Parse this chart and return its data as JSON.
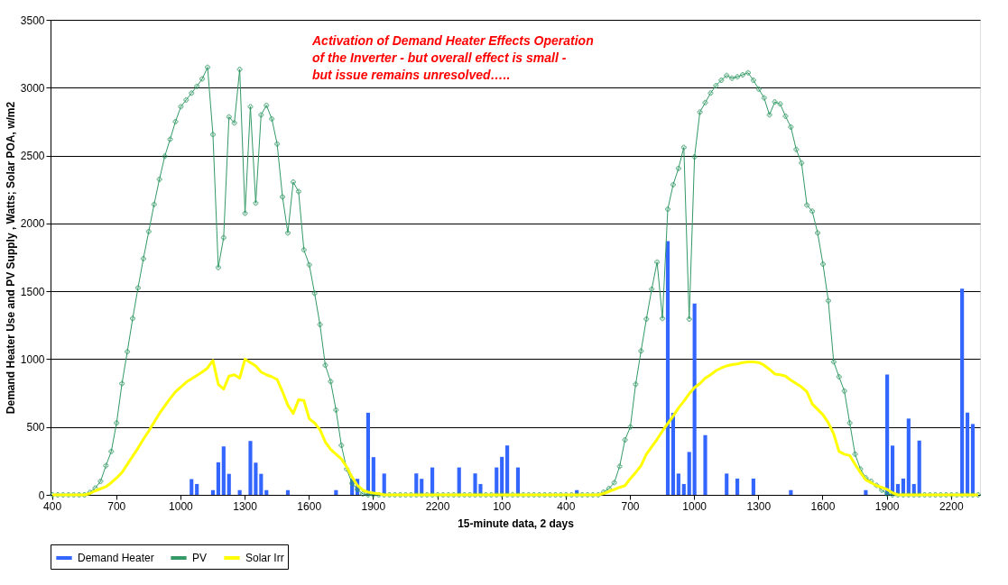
{
  "chart_data": {
    "type": "line",
    "xlabel": "15-minute data, 2 days",
    "ylabel": "Demand Heater Use and PV Supply , Watts; Solar POA, w/m2",
    "annotations": [
      "Activation of Demand Heater Effects Operation of the Inverter - but overall effect is small - but issue remains unresolved….."
    ],
    "categories": [
      "400",
      null,
      null,
      null,
      null,
      null,
      null,
      null,
      null,
      null,
      null,
      null,
      "700",
      null,
      null,
      null,
      null,
      null,
      null,
      null,
      null,
      null,
      null,
      null,
      "1000",
      null,
      null,
      null,
      null,
      null,
      null,
      null,
      null,
      null,
      null,
      null,
      "1300",
      null,
      null,
      null,
      null,
      null,
      null,
      null,
      null,
      null,
      null,
      null,
      "1600",
      null,
      null,
      null,
      null,
      null,
      null,
      null,
      null,
      null,
      null,
      null,
      "1900",
      null,
      null,
      null,
      null,
      null,
      null,
      null,
      null,
      null,
      null,
      null,
      "2200",
      null,
      null,
      null,
      null,
      null,
      null,
      null,
      null,
      null,
      null,
      null,
      "100",
      null,
      null,
      null,
      null,
      null,
      null,
      null,
      null,
      null,
      null,
      null,
      "400",
      null,
      null,
      null,
      null,
      null,
      null,
      null,
      null,
      null,
      null,
      null,
      "700",
      null,
      null,
      null,
      null,
      null,
      null,
      null,
      null,
      null,
      null,
      null,
      "1000",
      null,
      null,
      null,
      null,
      null,
      null,
      null,
      null,
      null,
      null,
      null,
      "1300",
      null,
      null,
      null,
      null,
      null,
      null,
      null,
      null,
      null,
      null,
      null,
      "1600",
      null,
      null,
      null,
      null,
      null,
      null,
      null,
      null,
      null,
      null,
      null,
      "1900",
      null,
      null,
      null,
      null,
      null,
      null,
      null,
      null,
      null,
      null,
      null,
      "2200",
      null,
      null,
      null,
      null,
      null
    ],
    "ylim": [
      0,
      3500
    ],
    "yticks": [
      0,
      500,
      1000,
      1500,
      2000,
      2500,
      3000,
      3500
    ],
    "grid": "y",
    "legend": "bottom",
    "series": [
      {
        "name": "Demand Heater",
        "type": "bar",
        "color": "#3366ff",
        "values": [
          null,
          null,
          null,
          null,
          null,
          null,
          null,
          null,
          null,
          null,
          null,
          null,
          null,
          null,
          null,
          null,
          null,
          null,
          null,
          null,
          null,
          null,
          null,
          null,
          null,
          null,
          116,
          80,
          null,
          null,
          35,
          240,
          357,
          155,
          null,
          35,
          null,
          397,
          237,
          155,
          35,
          null,
          null,
          null,
          35,
          null,
          null,
          null,
          null,
          null,
          null,
          null,
          null,
          35,
          null,
          null,
          120,
          118,
          null,
          605,
          278,
          null,
          157,
          null,
          null,
          null,
          null,
          null,
          158,
          118,
          null,
          202,
          null,
          null,
          null,
          null,
          202,
          null,
          null,
          158,
          80,
          null,
          null,
          202,
          280,
          364,
          null,
          202,
          null,
          null,
          null,
          null,
          null,
          null,
          null,
          null,
          null,
          null,
          35,
          null,
          null,
          null,
          null,
          null,
          null,
          null,
          null,
          null,
          null,
          null,
          null,
          null,
          null,
          null,
          null,
          1870,
          604,
          157,
          80,
          316,
          1410,
          null,
          440,
          null,
          null,
          null,
          157,
          null,
          120,
          null,
          null,
          120,
          null,
          null,
          null,
          null,
          null,
          null,
          35,
          null,
          null,
          null,
          null,
          null,
          null,
          null,
          null,
          null,
          null,
          null,
          null,
          null,
          35,
          null,
          null,
          null,
          887,
          363,
          80,
          120,
          562,
          80,
          400,
          null,
          null,
          null,
          null,
          null,
          null,
          null,
          1520,
          606,
          522,
          null
        ]
      },
      {
        "name": "PV",
        "color": "#339966",
        "marker": "cross",
        "values": [
          0,
          0,
          0,
          0,
          0,
          0,
          0,
          18,
          50,
          100,
          215,
          320,
          530,
          820,
          1055,
          1300,
          1525,
          1740,
          1940,
          2140,
          2325,
          2495,
          2620,
          2750,
          2860,
          2910,
          2960,
          3010,
          3065,
          3150,
          2655,
          1675,
          1895,
          2785,
          2740,
          3135,
          2075,
          2860,
          2150,
          2800,
          2870,
          2770,
          2585,
          2195,
          1930,
          2305,
          2235,
          1805,
          1695,
          1485,
          1255,
          955,
          835,
          625,
          365,
          190,
          85,
          40,
          7,
          0,
          0,
          0,
          0,
          0,
          0,
          0,
          0,
          0,
          0,
          0,
          0,
          0,
          0,
          0,
          0,
          0,
          0,
          0,
          0,
          0,
          0,
          0,
          0,
          0,
          0,
          0,
          0,
          0,
          0,
          0,
          0,
          0,
          0,
          0,
          0,
          0,
          0,
          0,
          0,
          0,
          0,
          0,
          0,
          20,
          46,
          90,
          210,
          405,
          500,
          815,
          1060,
          1295,
          1515,
          1715,
          1300,
          2105,
          2285,
          2405,
          2560,
          1295,
          2490,
          2820,
          2890,
          2960,
          3015,
          3055,
          3090,
          3070,
          3080,
          3095,
          3110,
          3055,
          2990,
          2925,
          2800,
          2895,
          2880,
          2790,
          2710,
          2545,
          2445,
          2135,
          2090,
          1930,
          1700,
          1430,
          980,
          870,
          765,
          530,
          300,
          190,
          125,
          100,
          70,
          35,
          7,
          0,
          0,
          0,
          0,
          0,
          0,
          0,
          0,
          0,
          0,
          0,
          0,
          0,
          0,
          0,
          0,
          0
        ]
      },
      {
        "name": "Solar Irr",
        "color": "#ffff00",
        "values": [
          0,
          0,
          0,
          0,
          0,
          0,
          0,
          10,
          30,
          45,
          60,
          90,
          125,
          165,
          225,
          285,
          345,
          410,
          470,
          535,
          600,
          655,
          710,
          760,
          795,
          830,
          855,
          880,
          905,
          935,
          990,
          815,
          780,
          875,
          885,
          860,
          1000,
          975,
          950,
          905,
          885,
          870,
          850,
          760,
          660,
          600,
          700,
          695,
          560,
          530,
          480,
          390,
          335,
          300,
          265,
          205,
          130,
          70,
          35,
          20,
          13,
          8,
          0,
          0,
          0,
          0,
          0,
          0,
          0,
          0,
          0,
          0,
          0,
          0,
          0,
          0,
          0,
          0,
          0,
          0,
          0,
          0,
          0,
          0,
          0,
          0,
          0,
          0,
          0,
          0,
          0,
          0,
          0,
          0,
          0,
          0,
          0,
          0,
          0,
          0,
          0,
          0,
          0,
          10,
          25,
          40,
          55,
          68,
          120,
          165,
          215,
          300,
          355,
          410,
          470,
          525,
          580,
          640,
          690,
          745,
          790,
          820,
          860,
          885,
          915,
          935,
          950,
          960,
          965,
          975,
          980,
          980,
          975,
          955,
          925,
          890,
          885,
          875,
          845,
          820,
          795,
          760,
          670,
          630,
          590,
          530,
          450,
          320,
          300,
          290,
          225,
          165,
          110,
          90,
          68,
          55,
          40,
          15,
          0,
          0,
          0,
          0,
          0,
          0,
          0,
          0,
          0,
          0,
          0,
          0,
          0,
          0,
          0,
          0
        ]
      }
    ]
  }
}
